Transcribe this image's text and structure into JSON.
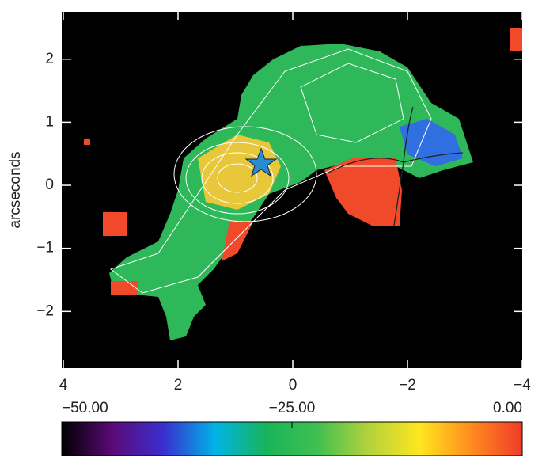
{
  "chart_data": {
    "type": "image",
    "ylabel": "arcseconds",
    "xlim": [
      4,
      -4
    ],
    "ylim": [
      -2.9,
      2.75
    ],
    "xticks": [
      4,
      2,
      0,
      {
        "value": -2,
        "label": "−2"
      },
      {
        "value": -4,
        "label": "−4"
      }
    ],
    "yticks": [
      {
        "value": -2,
        "label": "−2"
      },
      {
        "value": -1,
        "label": "−1"
      },
      0,
      1,
      2
    ],
    "colorbar": {
      "lim": [
        -50,
        0
      ],
      "ticks": [
        {
          "value": -50,
          "label": "−50.00"
        },
        {
          "value": -25,
          "label": "−25.00"
        },
        {
          "value": 0,
          "label": "0.00"
        }
      ],
      "colors": [
        "#000000",
        "#5a0a78",
        "#3a2fd0",
        "#00b4e6",
        "#18b45a",
        "#40c050",
        "#b4d23c",
        "#ffe61e",
        "#ff8c1e",
        "#f03c28"
      ]
    }
  }
}
